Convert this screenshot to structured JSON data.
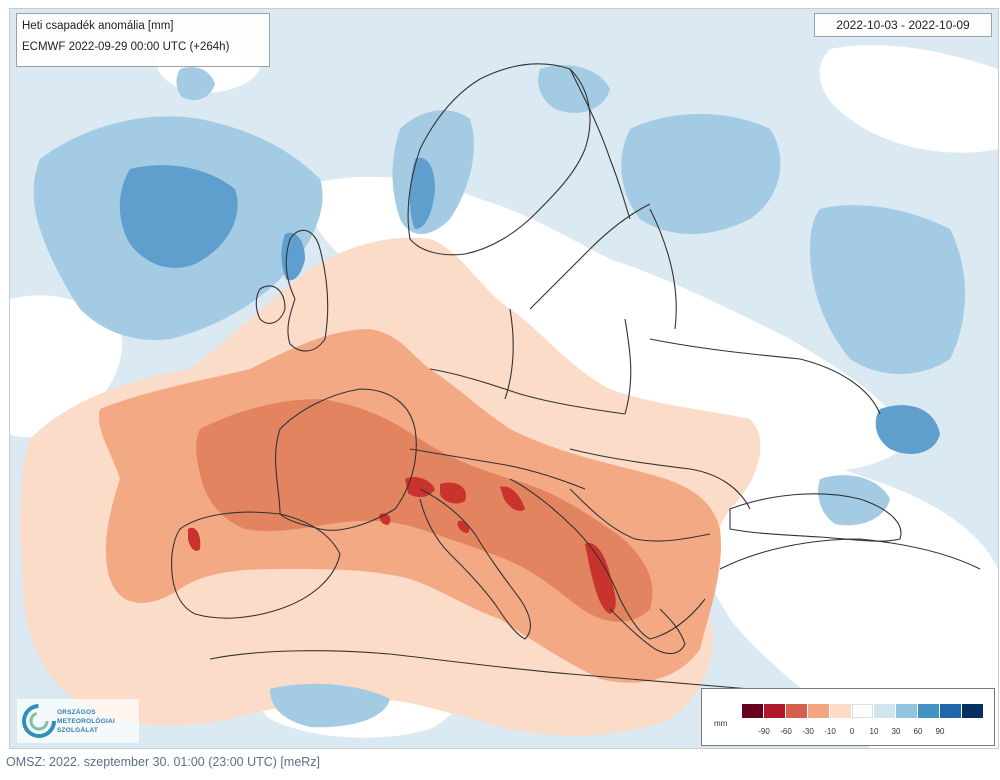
{
  "map": {
    "title": "Heti csapadék anomália [mm]",
    "model_run": "ECMWF 2022-09-29 00:00 UTC (+264h)",
    "date_range": "2022-10-03 - 2022-10-09"
  },
  "legend": {
    "unit": "mm",
    "classes": [
      {
        "color": "#67001f",
        "tick": "-90"
      },
      {
        "color": "#b2182b",
        "tick": "-60"
      },
      {
        "color": "#d6604d",
        "tick": "-30"
      },
      {
        "color": "#f4a582",
        "tick": "-10"
      },
      {
        "color": "#fddbc7",
        "tick": "0"
      },
      {
        "color": "#ffffff",
        "tick": "10"
      },
      {
        "color": "#d1e5f0",
        "tick": "30"
      },
      {
        "color": "#92c5de",
        "tick": "60"
      },
      {
        "color": "#4393c3",
        "tick": "90"
      },
      {
        "color": "#2166ac",
        "tick": ""
      },
      {
        "color": "#053061",
        "tick": ""
      }
    ]
  },
  "logo": {
    "lines": [
      "ORSZÁGOS",
      "METEOROLÓGIAI",
      "SZOLGÁLAT"
    ],
    "colors": {
      "ring": "#2f8fb8",
      "accent": "#7cc3a4"
    }
  },
  "footer": {
    "text": "OMSZ: 2022. szeptember 30. 01:00 (23:00 UTC) [meRz]"
  },
  "colors": {
    "dry_light": "#fbdcc8",
    "dry_mid": "#f3aa84",
    "dry_strong": "#e2845f",
    "dry_extreme": "#c8332e",
    "wet_light": "#dbe9f3",
    "wet_mid": "#a3cbe3",
    "wet_strong": "#5e9fcd",
    "border": "#333333"
  }
}
